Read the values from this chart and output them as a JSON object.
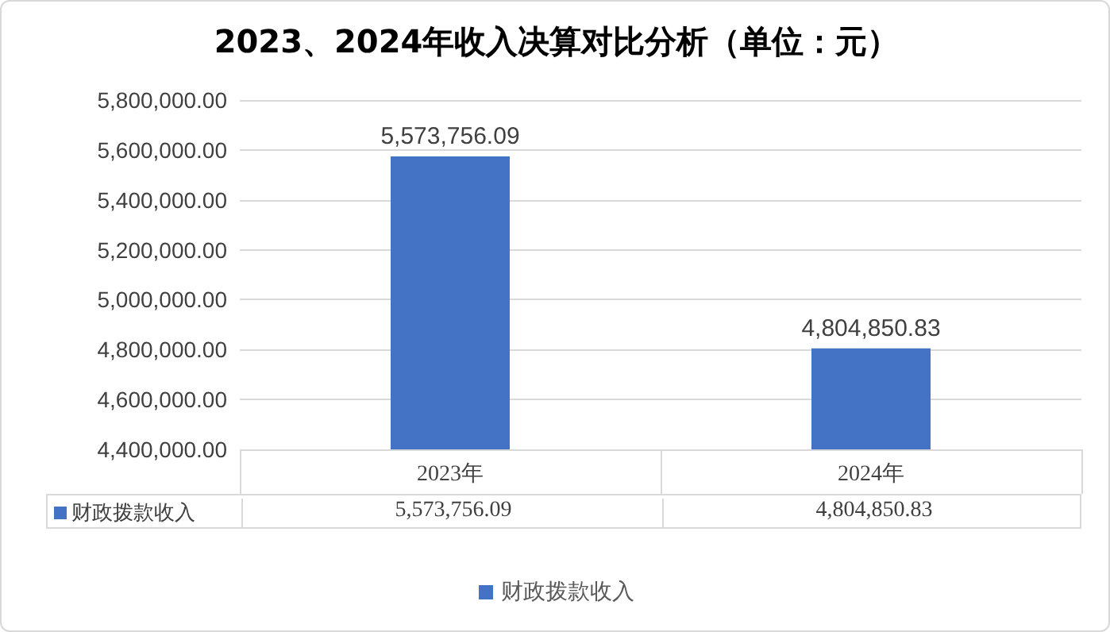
{
  "chart_data": {
    "type": "bar",
    "title": "2023、2024年收入决算对比分析（单位：元）",
    "categories": [
      "2023年",
      "2024年"
    ],
    "series": [
      {
        "name": "财政拨款收入",
        "color": "#4472c4",
        "values": [
          5573756.09,
          4804850.83
        ],
        "value_labels": [
          "5,573,756.09",
          "4,804,850.83"
        ]
      }
    ],
    "ylim": [
      4400000,
      5800000
    ],
    "yticks": [
      {
        "value": 4400000,
        "label": "4,400,000.00"
      },
      {
        "value": 4600000,
        "label": "4,600,000.00"
      },
      {
        "value": 4800000,
        "label": "4,800,000.00"
      },
      {
        "value": 5000000,
        "label": "5,000,000.00"
      },
      {
        "value": 5200000,
        "label": "5,200,000.00"
      },
      {
        "value": 5400000,
        "label": "5,400,000.00"
      },
      {
        "value": 5600000,
        "label": "5,600,000.00"
      },
      {
        "value": 5800000,
        "label": "5,800,000.00"
      }
    ],
    "grid": "y",
    "legend": "bottom"
  }
}
